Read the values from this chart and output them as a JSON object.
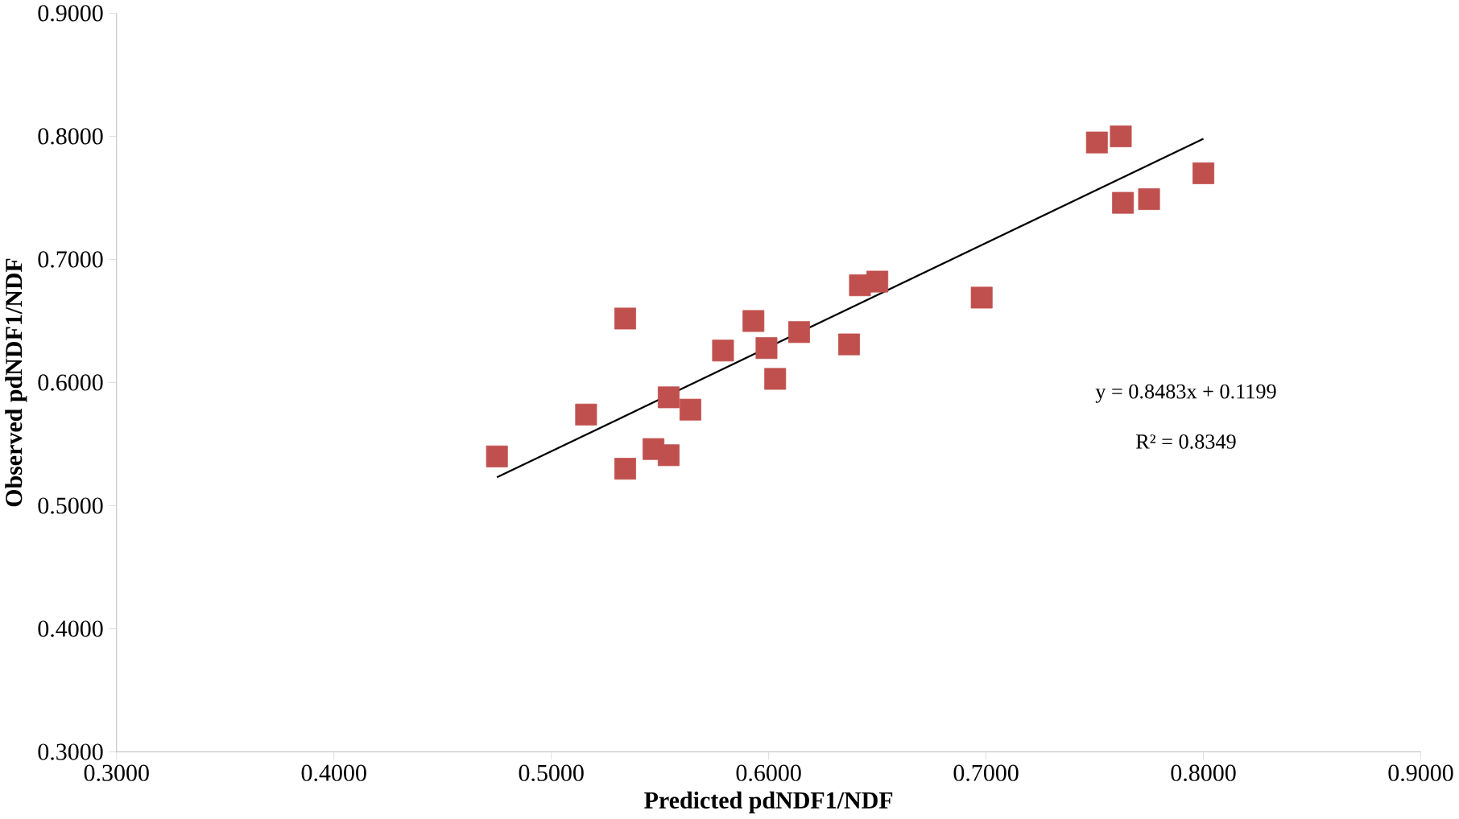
{
  "chart_data": {
    "type": "scatter",
    "xlabel": "Predicted pdNDF1/NDF",
    "ylabel": "Observed pdNDF1/NDF",
    "xlim": [
      0.3,
      0.9
    ],
    "ylim": [
      0.3,
      0.9
    ],
    "xticks": [
      {
        "value": 0.3,
        "label": "0.3000"
      },
      {
        "value": 0.4,
        "label": "0.4000"
      },
      {
        "value": 0.5,
        "label": "0.5000"
      },
      {
        "value": 0.6,
        "label": "0.6000"
      },
      {
        "value": 0.7,
        "label": "0.7000"
      },
      {
        "value": 0.8,
        "label": "0.8000"
      },
      {
        "value": 0.9,
        "label": "0.9000"
      }
    ],
    "yticks": [
      {
        "value": 0.3,
        "label": "0.3000"
      },
      {
        "value": 0.4,
        "label": "0.4000"
      },
      {
        "value": 0.5,
        "label": "0.5000"
      },
      {
        "value": 0.6,
        "label": "0.6000"
      },
      {
        "value": 0.7,
        "label": "0.7000"
      },
      {
        "value": 0.8,
        "label": "0.8000"
      },
      {
        "value": 0.9,
        "label": "0.9000"
      }
    ],
    "grid": false,
    "marker": "square",
    "series": [
      {
        "color": "#c0504d",
        "x": [
          0.475,
          0.516,
          0.534,
          0.534,
          0.547,
          0.554,
          0.554,
          0.564,
          0.579,
          0.593,
          0.599,
          0.603,
          0.614,
          0.637,
          0.642,
          0.65,
          0.698,
          0.751,
          0.762,
          0.763,
          0.775,
          0.8
        ],
        "values": [
          0.54,
          0.574,
          0.652,
          0.53,
          0.546,
          0.588,
          0.541,
          0.578,
          0.626,
          0.65,
          0.628,
          0.603,
          0.641,
          0.631,
          0.679,
          0.682,
          0.669,
          0.795,
          0.8,
          0.746,
          0.749,
          0.77
        ]
      },
      {
        "type": "line",
        "color": "#000000",
        "marker": "none",
        "x": [
          0.475,
          0.8
        ],
        "values": [
          0.523,
          0.798
        ]
      }
    ],
    "annotations": [
      "y = 0.8483x + 0.1199",
      "R² = 0.8349"
    ]
  }
}
